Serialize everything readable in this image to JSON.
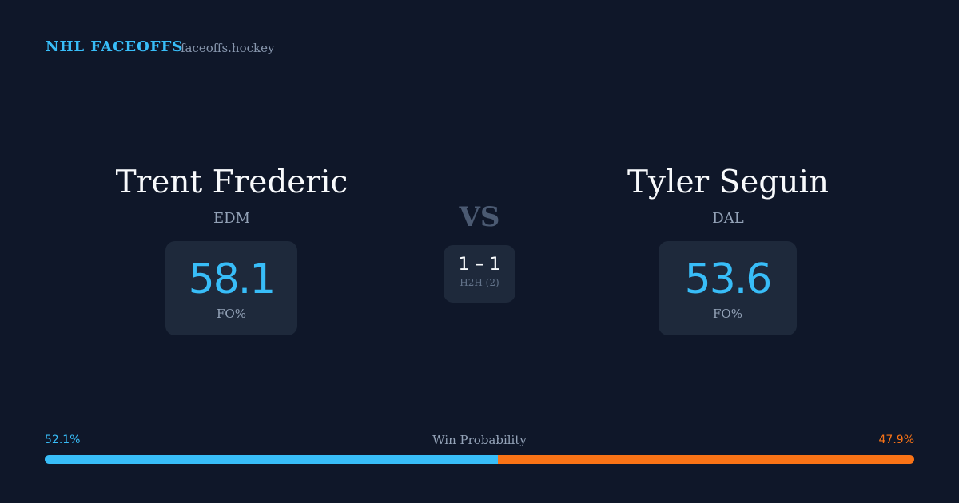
{
  "header": {
    "title": "NHL FACEOFFS",
    "site": "faceoffs.hockey"
  },
  "players": [
    {
      "name": "Trent Frederic",
      "team": "EDM",
      "fo_pct": 58.1,
      "fo_label": "FO%"
    },
    {
      "name": "Tyler Seguin",
      "team": "DAL",
      "fo_pct": 53.6,
      "fo_label": "FO%"
    }
  ],
  "vs": "VS",
  "h2h": {
    "score": "1 – 1",
    "label": "H2H (2)"
  },
  "win_probability": {
    "label": "Win Probability",
    "values": [
      52.1,
      47.9
    ],
    "value_labels": [
      "52.1%",
      "47.9%"
    ],
    "colors": [
      "#38bdf8",
      "#f97316"
    ]
  }
}
